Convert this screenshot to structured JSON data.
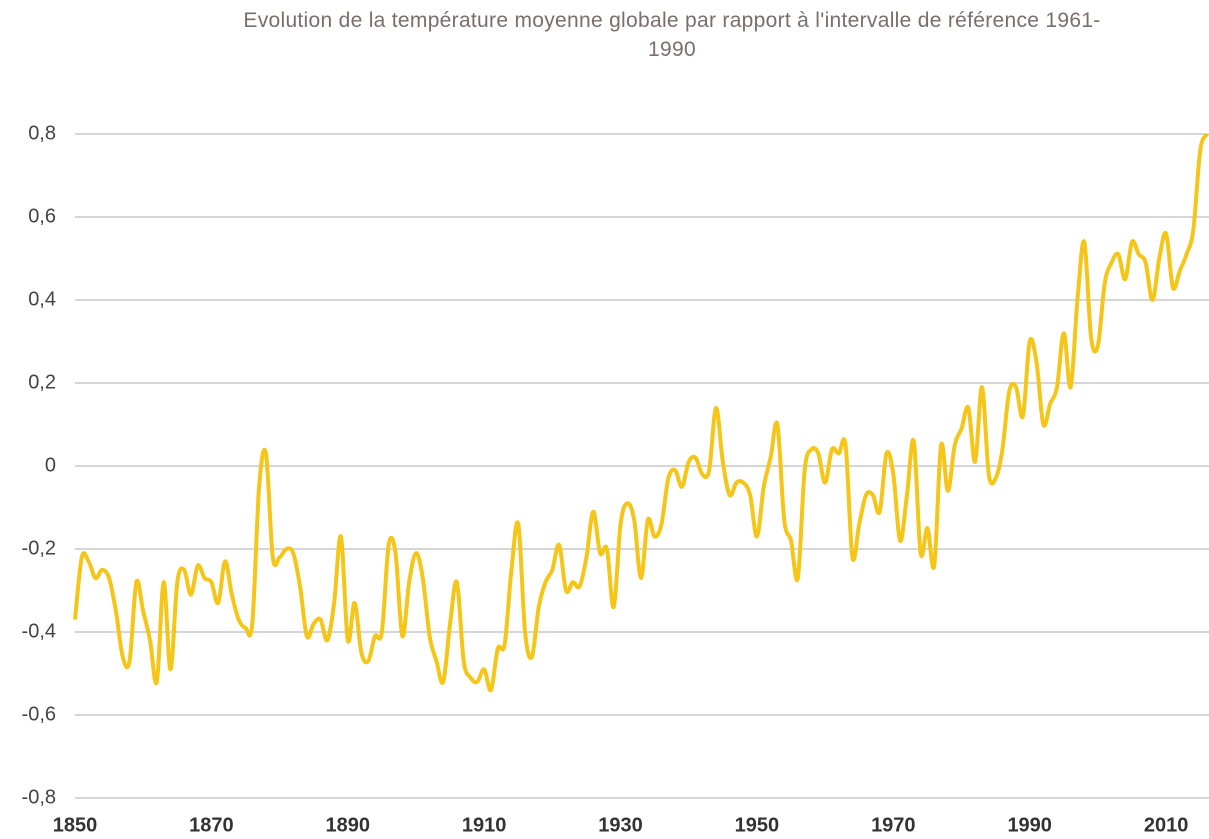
{
  "chart_data": {
    "type": "line",
    "title": "Evolution de la température moyenne globale par rapport à l'intervalle de référence 1961-1990",
    "x": [
      1850,
      1851,
      1852,
      1853,
      1854,
      1855,
      1856,
      1857,
      1858,
      1859,
      1860,
      1861,
      1862,
      1863,
      1864,
      1865,
      1866,
      1867,
      1868,
      1869,
      1870,
      1871,
      1872,
      1873,
      1874,
      1875,
      1876,
      1877,
      1878,
      1879,
      1880,
      1881,
      1882,
      1883,
      1884,
      1885,
      1886,
      1887,
      1888,
      1889,
      1890,
      1891,
      1892,
      1893,
      1894,
      1895,
      1896,
      1897,
      1898,
      1899,
      1900,
      1901,
      1902,
      1903,
      1904,
      1905,
      1906,
      1907,
      1908,
      1909,
      1910,
      1911,
      1912,
      1913,
      1914,
      1915,
      1916,
      1917,
      1918,
      1919,
      1920,
      1921,
      1922,
      1923,
      1924,
      1925,
      1926,
      1927,
      1928,
      1929,
      1930,
      1931,
      1932,
      1933,
      1934,
      1935,
      1936,
      1937,
      1938,
      1939,
      1940,
      1941,
      1942,
      1943,
      1944,
      1945,
      1946,
      1947,
      1948,
      1949,
      1950,
      1951,
      1952,
      1953,
      1954,
      1955,
      1956,
      1957,
      1958,
      1959,
      1960,
      1961,
      1962,
      1963,
      1964,
      1965,
      1966,
      1967,
      1968,
      1969,
      1970,
      1971,
      1972,
      1973,
      1974,
      1975,
      1976,
      1977,
      1978,
      1979,
      1980,
      1981,
      1982,
      1983,
      1984,
      1985,
      1986,
      1987,
      1988,
      1989,
      1990,
      1991,
      1992,
      1993,
      1994,
      1995,
      1996,
      1997,
      1998,
      1999,
      2000,
      2001,
      2002,
      2003,
      2004,
      2005,
      2006,
      2007,
      2008,
      2009,
      2010,
      2011,
      2012,
      2013,
      2014,
      2015,
      2016
    ],
    "values": [
      -0.37,
      -0.22,
      -0.23,
      -0.27,
      -0.25,
      -0.27,
      -0.35,
      -0.46,
      -0.47,
      -0.28,
      -0.35,
      -0.42,
      -0.52,
      -0.28,
      -0.49,
      -0.28,
      -0.25,
      -0.31,
      -0.24,
      -0.27,
      -0.28,
      -0.33,
      -0.23,
      -0.31,
      -0.37,
      -0.39,
      -0.38,
      -0.05,
      0.03,
      -0.22,
      -0.22,
      -0.2,
      -0.21,
      -0.29,
      -0.41,
      -0.38,
      -0.37,
      -0.42,
      -0.33,
      -0.17,
      -0.42,
      -0.33,
      -0.45,
      -0.47,
      -0.41,
      -0.4,
      -0.19,
      -0.21,
      -0.41,
      -0.28,
      -0.21,
      -0.27,
      -0.41,
      -0.47,
      -0.52,
      -0.38,
      -0.28,
      -0.47,
      -0.51,
      -0.52,
      -0.49,
      -0.54,
      -0.44,
      -0.43,
      -0.25,
      -0.14,
      -0.4,
      -0.46,
      -0.34,
      -0.28,
      -0.25,
      -0.19,
      -0.3,
      -0.28,
      -0.29,
      -0.22,
      -0.11,
      -0.21,
      -0.2,
      -0.34,
      -0.14,
      -0.09,
      -0.13,
      -0.27,
      -0.13,
      -0.17,
      -0.14,
      -0.03,
      -0.01,
      -0.05,
      0.01,
      0.02,
      -0.02,
      -0.01,
      0.14,
      0.01,
      -0.07,
      -0.04,
      -0.04,
      -0.07,
      -0.17,
      -0.05,
      0.02,
      0.1,
      -0.13,
      -0.18,
      -0.27,
      -0.01,
      0.04,
      0.03,
      -0.04,
      0.04,
      0.03,
      0.05,
      -0.22,
      -0.14,
      -0.07,
      -0.07,
      -0.11,
      0.03,
      -0.02,
      -0.18,
      -0.07,
      0.06,
      -0.21,
      -0.15,
      -0.24,
      0.05,
      -0.06,
      0.05,
      0.09,
      0.14,
      0.01,
      0.19,
      -0.02,
      -0.03,
      0.04,
      0.18,
      0.19,
      0.12,
      0.3,
      0.25,
      0.1,
      0.15,
      0.19,
      0.32,
      0.19,
      0.4,
      0.54,
      0.31,
      0.29,
      0.44,
      0.49,
      0.51,
      0.45,
      0.54,
      0.51,
      0.49,
      0.4,
      0.5,
      0.56,
      0.43,
      0.47,
      0.51,
      0.57,
      0.76,
      0.8
    ],
    "color": "#f5c518",
    "xlim": [
      1850,
      2016
    ],
    "xticks": [
      1850,
      1870,
      1890,
      1910,
      1930,
      1950,
      1970,
      1990,
      2010
    ],
    "ylim": [
      -0.8,
      0.8
    ],
    "yticks": [
      {
        "value": -0.8,
        "label": "-0,8"
      },
      {
        "value": -0.6,
        "label": "-0,6"
      },
      {
        "value": -0.4,
        "label": "-0,4"
      },
      {
        "value": -0.2,
        "label": "-0,2"
      },
      0,
      {
        "value": 0.2,
        "label": "0,2"
      },
      {
        "value": 0.4,
        "label": "0,4"
      },
      {
        "value": 0.6,
        "label": "0,6"
      },
      {
        "value": 0.8,
        "label": "0,8"
      }
    ],
    "grid": true
  }
}
